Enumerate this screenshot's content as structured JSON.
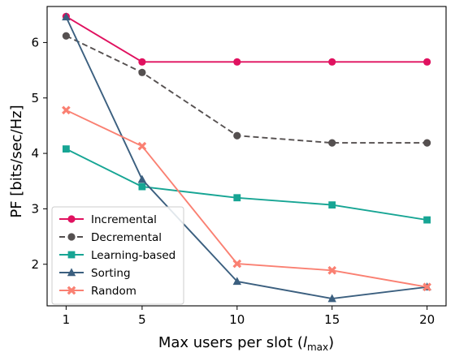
{
  "chart_data": {
    "type": "line",
    "xlabel": "Max users per slot (",
    "xlabel_symbol": "l",
    "xlabel_subscript": "max",
    "xlabel_close": ")",
    "ylabel": "PF [bits/sec/Hz]",
    "x": [
      1,
      5,
      10,
      15,
      20
    ],
    "x_ticks": [
      1,
      5,
      10,
      15,
      20
    ],
    "y_ticks": [
      2,
      3,
      4,
      5,
      6
    ],
    "xlim": [
      0,
      21
    ],
    "ylim": [
      1.25,
      6.65
    ],
    "grid": false,
    "legend_position": "lower-left",
    "series": [
      {
        "name": "Incremental",
        "color": "#e0115f",
        "marker": "circle",
        "dash": "solid",
        "values": [
          6.47,
          5.65,
          5.65,
          5.65,
          5.65
        ]
      },
      {
        "name": "Decremental",
        "color": "#555050",
        "marker": "circle",
        "dash": "dashed",
        "values": [
          6.12,
          5.46,
          4.32,
          4.19,
          4.19
        ]
      },
      {
        "name": "Learning-based",
        "color": "#17a594",
        "marker": "square",
        "dash": "solid",
        "values": [
          4.08,
          3.4,
          3.2,
          3.07,
          2.8
        ]
      },
      {
        "name": "Sorting",
        "color": "#3b5f7f",
        "marker": "triangle",
        "dash": "solid",
        "values": [
          6.46,
          3.53,
          1.69,
          1.38,
          1.59
        ]
      },
      {
        "name": "Random",
        "color": "#fa8072",
        "marker": "x",
        "dash": "solid",
        "values": [
          4.78,
          4.13,
          2.01,
          1.89,
          1.59
        ]
      }
    ]
  }
}
